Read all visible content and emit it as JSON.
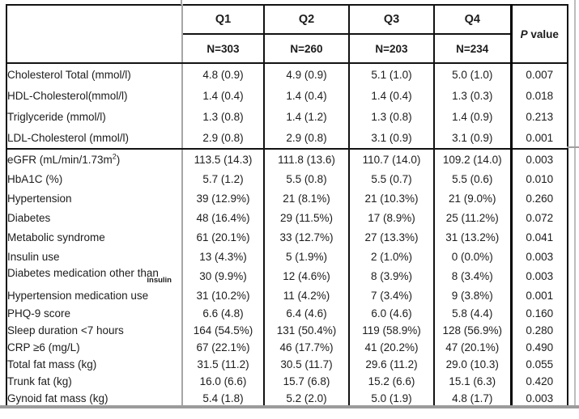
{
  "colors": {
    "border_black": "#121212",
    "border_gray": "#a6a6a6",
    "text": "#1c1c1c",
    "background": "#ffffff"
  },
  "table": {
    "columns": [
      {
        "label": "Q1",
        "n": "N=303"
      },
      {
        "label": "Q2",
        "n": "N=260"
      },
      {
        "label": "Q3",
        "n": "N=203"
      },
      {
        "label": "Q4",
        "n": "N=234"
      }
    ],
    "p_header": {
      "p": "P",
      "rest": " value"
    },
    "rows": [
      {
        "group": 1,
        "label": "Cholesterol Total (mmol/l)",
        "q1": "4.8 (0.9)",
        "q2": "4.9 (0.9)",
        "q3": "5.1 (1.0)",
        "q4": "5.0 (1.0)",
        "p": "0.007"
      },
      {
        "group": 1,
        "label": "HDL-Cholesterol(mmol/l)",
        "q1": "1.4 (0.4)",
        "q2": "1.4 (0.4)",
        "q3": "1.4 (0.4)",
        "q4": "1.3 (0.3)",
        "p": "0.018"
      },
      {
        "group": 1,
        "label": "Triglyceride (mmol/l)",
        "q1": "1.3 (0.8)",
        "q2": "1.4 (1.2)",
        "q3": "1.3 (0.8)",
        "q4": "1.4 (0.9)",
        "p": "0.213"
      },
      {
        "group": 1,
        "label": "LDL-Cholesterol (mmol/l)",
        "q1": "2.9 (0.8)",
        "q2": "2.9 (0.8)",
        "q3": "3.1 (0.9)",
        "q4": "3.1 (0.9)",
        "p": "0.001",
        "section_end": true
      },
      {
        "group": 2,
        "label": "eGFR (mL/min/1.73m",
        "sup": "2",
        "after": ")",
        "q1": "113.5 (14.3)",
        "q2": "111.8 (13.6)",
        "q3": "110.7 (14.0)",
        "q4": "109.2 (14.0)",
        "p": "0.003"
      },
      {
        "group": 2,
        "label": "HbA1C (%)",
        "q1": "5.7 (1.2)",
        "q2": "5.5 (0.8)",
        "q3": "5.5 (0.7)",
        "q4": "5.5 (0.6)",
        "p": "0.010"
      },
      {
        "group": 2,
        "label": "Hypertension",
        "q1": "39 (12.9%)",
        "q2": "21 (8.1%)",
        "q3": "21 (10.3%)",
        "q4": "21 (9.0%)",
        "p": "0.260"
      },
      {
        "group": 2,
        "label": "Diabetes",
        "q1": "48 (16.4%)",
        "q2": "29 (11.5%)",
        "q3": "17 (8.9%)",
        "q4": "25 (11.2%)",
        "p": "0.072"
      },
      {
        "group": 2,
        "label": "Metabolic syndrome",
        "q1": "61 (20.1%)",
        "q2": "33 (12.7%)",
        "q3": "27 (13.3%)",
        "q4": "31 (13.2%)",
        "p": "0.041"
      },
      {
        "group": 2,
        "label": "Insulin use",
        "q1": "13 (4.3%)",
        "q2": "5 (1.9%)",
        "q3": "2 (1.0%)",
        "q4": "0 (0.0%)",
        "p": "0.003"
      },
      {
        "group": 2,
        "label": "Diabetes medication other than",
        "sub": "insulin",
        "q1": "30 (9.9%)",
        "q2": "12 (4.6%)",
        "q3": "8 (3.9%)",
        "q4": "8 (3.4%)",
        "p": "0.003"
      },
      {
        "group": 2,
        "label": "Hypertension medication use",
        "q1": "31 (10.2%)",
        "q2": "11 (4.2%)",
        "q3": "7 (3.4%)",
        "q4": "9 (3.8%)",
        "p": "0.001"
      },
      {
        "group": 3,
        "label": "PHQ-9 score",
        "q1": "6.6 (4.8)",
        "q2": "6.4 (4.6)",
        "q3": "6.0 (4.6)",
        "q4": "5.8 (4.4)",
        "p": "0.160"
      },
      {
        "group": 3,
        "label": "Sleep duration <7 hours",
        "q1": "164 (54.5%)",
        "q2": "131 (50.4%)",
        "q3": "119 (58.9%)",
        "q4": "128 (56.9%)",
        "p": "0.280"
      },
      {
        "group": 3,
        "label": "CRP ≥6 (mg/L)",
        "q1": "67 (22.1%)",
        "q2": "46 (17.7%)",
        "q3": "41 (20.2%)",
        "q4": "47 (20.1%)",
        "p": "0.490"
      },
      {
        "group": 3,
        "label": "Total fat mass (kg)",
        "q1": "31.5 (11.2)",
        "q2": "30.5 (11.7)",
        "q3": "29.6 (11.2)",
        "q4": "29.0 (10.3)",
        "p": "0.055"
      },
      {
        "group": 3,
        "label": "Trunk fat (kg)",
        "q1": "16.0 (6.6)",
        "q2": "15.7 (6.8)",
        "q3": "15.2 (6.6)",
        "q4": "15.1 (6.3)",
        "p": "0.420"
      },
      {
        "group": 3,
        "label": "Gynoid fat mass (kg)",
        "q1": "5.4 (1.8)",
        "q2": "5.2 (2.0)",
        "q3": "5.0 (1.9)",
        "q4": "4.8 (1.7)",
        "p": "0.003"
      }
    ]
  }
}
